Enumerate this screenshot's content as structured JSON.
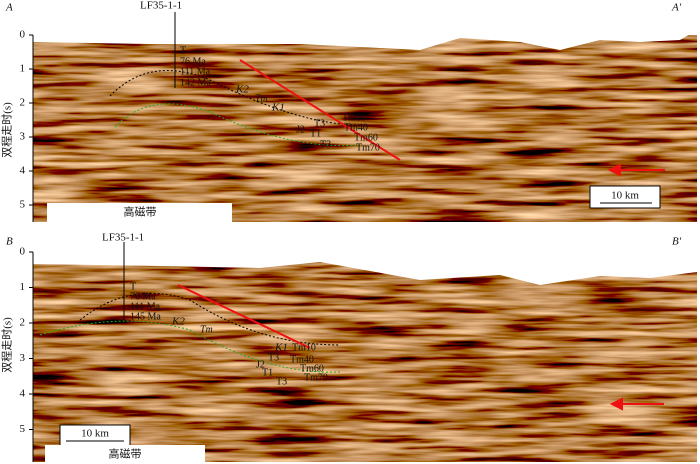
{
  "panels": [
    {
      "corner_left": "A",
      "corner_right": "A'",
      "well": "LF35-1-1",
      "ages": [
        "T",
        "76 Ma",
        "111 Ma",
        "142 Ma"
      ],
      "horizons": [
        "K2",
        "Tm",
        "K1",
        "J2",
        "T3",
        "T1",
        "T3",
        "Tm10",
        "Tm40",
        "Tm60",
        "Tm70"
      ],
      "scale_bar": "10 km",
      "zone": "高磁带",
      "y_label": "双程走时(s)",
      "yticks": [
        0,
        1,
        2,
        3,
        4,
        5
      ]
    },
    {
      "corner_left": "B",
      "corner_right": "B'",
      "well": "LF35-1-1",
      "ages": [
        "T",
        "76 Ma",
        "111 Ma",
        "145 Ma"
      ],
      "horizons": [
        "K2",
        "Tm",
        "K1",
        "J2",
        "T3",
        "T1",
        "T3",
        "Tm10",
        "Tm40",
        "Tm60",
        "Tm70"
      ],
      "scale_bar": "10 km",
      "zone": "高磁带",
      "y_label": "双程走时(s)",
      "yticks": [
        0,
        1,
        2,
        3,
        4,
        5
      ]
    }
  ]
}
